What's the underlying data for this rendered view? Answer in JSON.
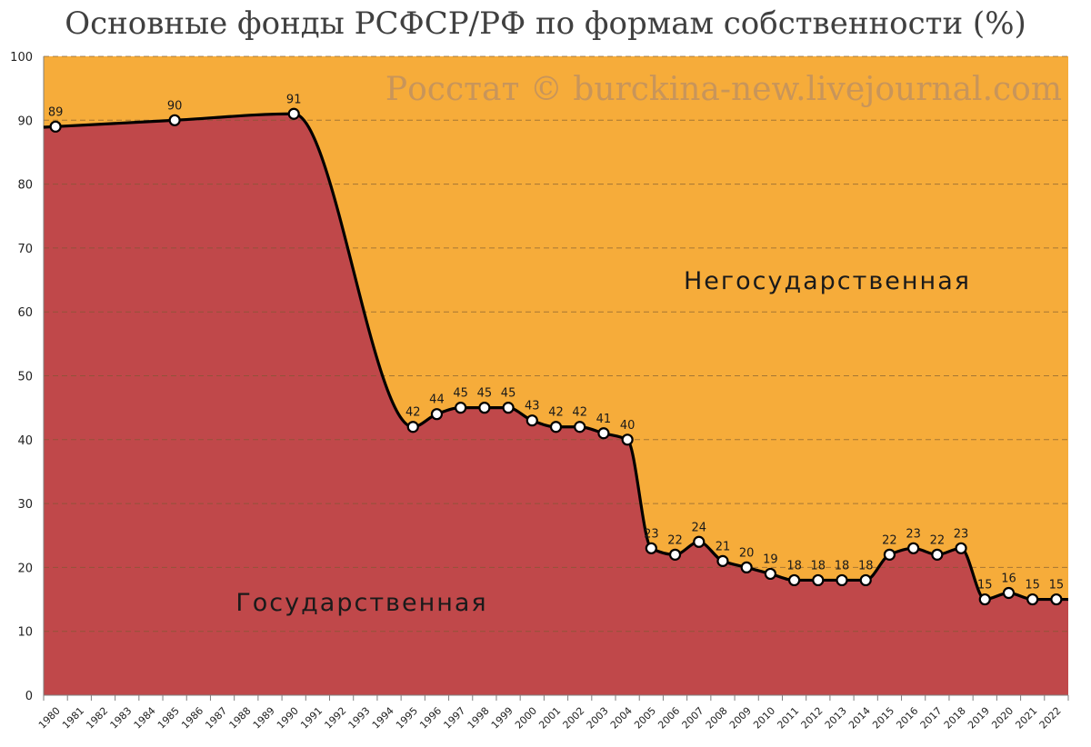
{
  "chart_data": {
    "type": "area",
    "title": "Основные фонды РСФСР/РФ по формам собственности (%)",
    "watermark": "Росстат © burckina-new.livejournal.com",
    "area_labels": {
      "upper": "Негосударственная",
      "lower": "Государственная"
    },
    "colors": {
      "upper": "#f6ac3a",
      "lower": "#c0484a",
      "line": "#000000",
      "grid": "#7a5a30",
      "watermark": "#c8955a"
    },
    "ylim": [
      0,
      100
    ],
    "yticks": [
      0,
      10,
      20,
      30,
      40,
      50,
      60,
      70,
      80,
      90,
      100
    ],
    "categories": [
      "1980",
      "1981",
      "1982",
      "1983",
      "1984",
      "1985",
      "1986",
      "1987",
      "1988",
      "1989",
      "1990",
      "1991",
      "1992",
      "1993",
      "1994",
      "1995",
      "1996",
      "1997",
      "1998",
      "1999",
      "2000",
      "2001",
      "2002",
      "2003",
      "2004",
      "2005",
      "2006",
      "2007",
      "2008",
      "2009",
      "2010",
      "2011",
      "2012",
      "2013",
      "2014",
      "2015",
      "2016",
      "2017",
      "2018",
      "2019",
      "2020",
      "2021",
      "2022"
    ],
    "series": [
      {
        "values": [
          89,
          null,
          null,
          null,
          null,
          90,
          null,
          null,
          null,
          null,
          91,
          null,
          null,
          null,
          null,
          42,
          44,
          45,
          45,
          45,
          43,
          42,
          42,
          41,
          40,
          23,
          22,
          24,
          21,
          20,
          19,
          18,
          18,
          18,
          18,
          22,
          23,
          22,
          23,
          15,
          16,
          15,
          15
        ]
      }
    ],
    "grid": true,
    "legend": "none"
  }
}
